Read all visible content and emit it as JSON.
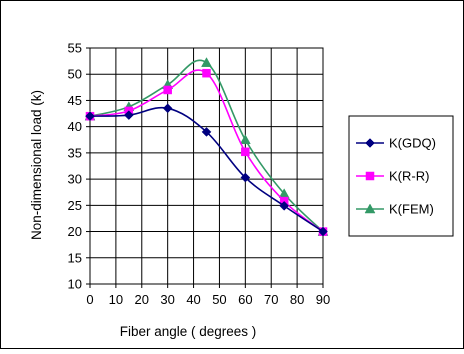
{
  "chart_data": {
    "type": "line",
    "title": "",
    "xlabel": "Fiber angle ( degrees )",
    "ylabel": "Non-dimensional load (k)",
    "xlim": [
      0,
      90
    ],
    "ylim": [
      10,
      55
    ],
    "xticks": [
      "0",
      "10",
      "20",
      "30",
      "40",
      "50",
      "60",
      "70",
      "80",
      "90"
    ],
    "yticks": [
      "10",
      "15",
      "20",
      "25",
      "30",
      "35",
      "40",
      "45",
      "50",
      "55"
    ],
    "grid": true,
    "legend_position": "right",
    "x": [
      0,
      15,
      30,
      45,
      60,
      75,
      90
    ],
    "series": [
      {
        "name": "K(GDQ)",
        "marker": "diamond",
        "color": "#000080",
        "values": [
          42,
          42.2,
          43.5,
          39,
          30.3,
          24.9,
          20
        ]
      },
      {
        "name": "K(R-R)",
        "marker": "square",
        "color": "#ff00ff",
        "values": [
          42,
          43,
          47,
          50.2,
          35.2,
          25.8,
          20
        ]
      },
      {
        "name": "K(FEM)",
        "marker": "triangle",
        "color": "#339966",
        "values": [
          42,
          43.8,
          48,
          52.2,
          37.5,
          27.2,
          20
        ]
      }
    ]
  }
}
